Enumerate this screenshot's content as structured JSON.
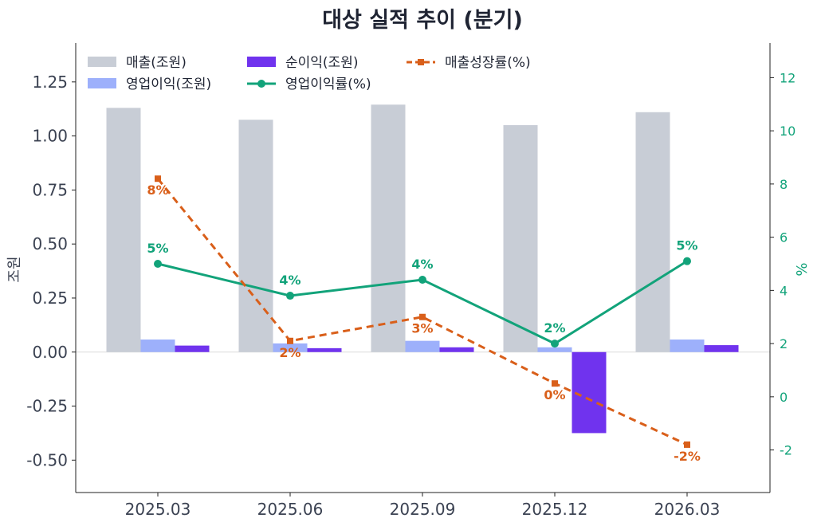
{
  "chart_data": {
    "type": "bar",
    "title": "대상 실적 추이 (분기)",
    "categories": [
      "2025.03",
      "2025.06",
      "2025.09",
      "2025.12",
      "2026.03"
    ],
    "ylabel": "조원",
    "ylabel_right": "%",
    "ylim": [
      -0.65,
      1.43
    ],
    "ylim_right": [
      -3.6,
      13.3
    ],
    "yticks": [
      -0.5,
      -0.25,
      0.0,
      0.25,
      0.5,
      0.75,
      1.0,
      1.25
    ],
    "yticks_right": [
      -2,
      0,
      2,
      4,
      6,
      8,
      10,
      12
    ],
    "ytick_labels": [
      "-0.50",
      "-0.25",
      "0.00",
      "0.25",
      "0.50",
      "0.75",
      "1.00",
      "1.25"
    ],
    "ytick_labels_right": [
      "-2",
      "0",
      "2",
      "4",
      "6",
      "8",
      "10",
      "12"
    ],
    "legend_position": "top-left",
    "series": [
      {
        "name": "매출(조원)",
        "kind": "bar",
        "axis": "left",
        "color": "#c8cdd6",
        "values": [
          1.13,
          1.075,
          1.145,
          1.05,
          1.11
        ]
      },
      {
        "name": "영업이익(조원)",
        "kind": "bar",
        "axis": "left",
        "color": "#9db0fb",
        "values": [
          0.058,
          0.04,
          0.052,
          0.022,
          0.058
        ]
      },
      {
        "name": "순이익(조원)",
        "kind": "bar",
        "axis": "left",
        "color": "#7033ee",
        "values": [
          0.03,
          0.018,
          0.022,
          -0.375,
          0.032
        ]
      },
      {
        "name": "영업이익률(%)",
        "kind": "line",
        "axis": "right",
        "color": "#12a37a",
        "values": [
          5.0,
          3.8,
          4.4,
          2.0,
          5.1
        ],
        "labels": [
          "5%",
          "4%",
          "4%",
          "2%",
          "5%"
        ]
      },
      {
        "name": "매출성장률(%)",
        "kind": "line-dashed",
        "axis": "right",
        "color": "#d95f1a",
        "values": [
          8.2,
          2.1,
          3.0,
          0.5,
          -1.8
        ],
        "labels": [
          "8%",
          "2%",
          "3%",
          "0%",
          "-2%"
        ]
      }
    ]
  }
}
